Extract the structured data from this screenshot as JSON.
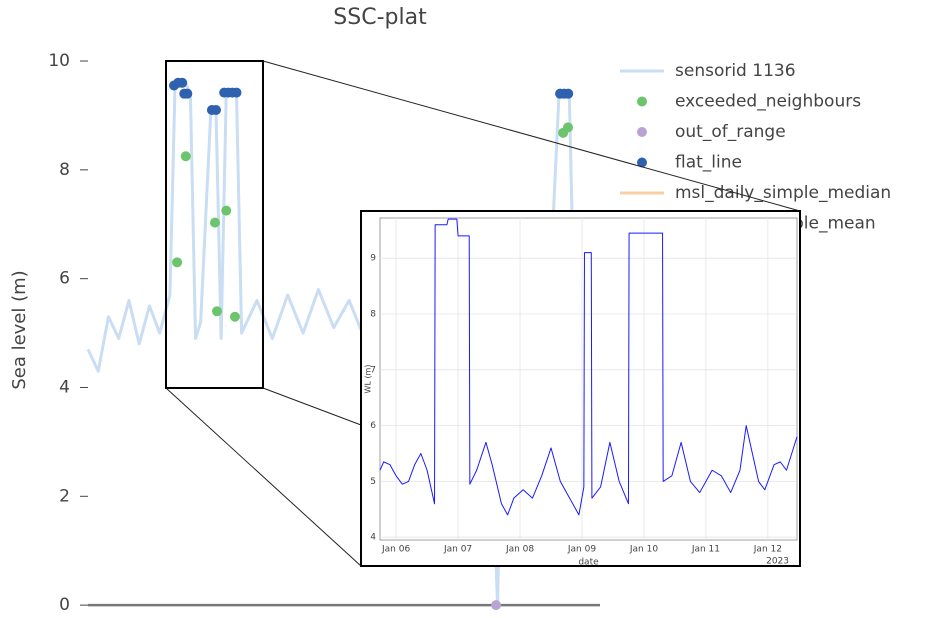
{
  "chart_data": [
    {
      "type": "line",
      "title": "SSC-plat",
      "y_label": "Sea level (m)",
      "xlim": [
        0,
        100
      ],
      "ylim": [
        -0.2,
        10.3
      ],
      "yticks": [
        0,
        2,
        4,
        6,
        8,
        10
      ],
      "legend": "right",
      "series": [
        {
          "name": "sensorid 1136",
          "color": "#c9ddf3",
          "mode": "line",
          "x": [
            0,
            2,
            4,
            6,
            8,
            10,
            12,
            14,
            16,
            17,
            19,
            20,
            21,
            22,
            24,
            25,
            26,
            27,
            29,
            30,
            33,
            36,
            39,
            42,
            45,
            48,
            51,
            54,
            57,
            60,
            63,
            66,
            69,
            72,
            75,
            78,
            80,
            81,
            84,
            87,
            90,
            92,
            94,
            95,
            98,
            100
          ],
          "values": [
            4.7,
            4.3,
            5.3,
            4.9,
            5.6,
            4.8,
            5.5,
            5.0,
            5.7,
            9.55,
            9.6,
            9.4,
            4.9,
            5.2,
            9.1,
            9.1,
            4.9,
            9.42,
            9.42,
            5.0,
            5.6,
            4.9,
            5.7,
            5.0,
            5.8,
            5.1,
            5.6,
            4.9,
            5.5,
            5.2,
            5.7,
            4.9,
            5.4,
            5.1,
            5.6,
            5.0,
            0,
            5.3,
            5.7,
            5.0,
            5.4,
            9.4,
            9.4,
            5.2,
            5.5,
            5.0
          ]
        },
        {
          "name": "exceeded_neighbours",
          "color": "#6cc46c",
          "mode": "markers",
          "x": [
            17.4,
            19.1,
            24.8,
            27,
            25.2,
            28.7,
            92.8,
            93.75
          ],
          "values": [
            6.3,
            8.25,
            7.03,
            7.25,
            5.4,
            5.3,
            8.68,
            8.78
          ]
        },
        {
          "name": "out_of_range",
          "color": "#b9a3d3",
          "mode": "markers",
          "x": [
            79.7
          ],
          "values": [
            0
          ]
        },
        {
          "name": "flat_line",
          "color": "#2f62ae",
          "mode": "markers",
          "x": [
            16.8,
            17.6,
            18.4,
            18.8,
            19.4,
            24.2,
            25,
            26.6,
            27.4,
            28.2,
            29,
            92.2,
            93,
            93.8
          ],
          "values": [
            9.55,
            9.6,
            9.6,
            9.4,
            9.4,
            9.1,
            9.1,
            9.42,
            9.42,
            9.42,
            9.42,
            9.4,
            9.4,
            9.4
          ]
        },
        {
          "name": "msl_daily_simple_median",
          "color": "#f9cfa6",
          "mode": "line",
          "x": [],
          "values": []
        },
        {
          "name": "msl_daily_simple_mean",
          "color": "#a9c4e8",
          "mode": "line",
          "x": [],
          "values": []
        }
      ]
    },
    {
      "type": "line",
      "y_label": "WL (m)",
      "x_label": "date",
      "x_offset_label": "2023",
      "xlim": [
        5.74,
        12.47
      ],
      "ylim": [
        3.95,
        9.72
      ],
      "grid": true,
      "yticks": [
        4,
        5,
        6,
        7,
        8,
        9
      ],
      "xticks": [
        {
          "value": 6,
          "label": "Jan 06"
        },
        {
          "value": 7,
          "label": "Jan 07"
        },
        {
          "value": 8,
          "label": "Jan 08"
        },
        {
          "value": 9,
          "label": "Jan 09"
        },
        {
          "value": 10,
          "label": "Jan 10"
        },
        {
          "value": 11,
          "label": "Jan 11"
        },
        {
          "value": 12,
          "label": "Jan 12"
        }
      ],
      "series": [
        {
          "color": "#1a1aff",
          "mode": "line",
          "x": [
            5.74,
            5.8,
            5.9,
            6.0,
            6.1,
            6.2,
            6.3,
            6.4,
            6.5,
            6.62,
            6.63,
            6.82,
            6.84,
            6.98,
            7.0,
            7.18,
            7.19,
            7.3,
            7.45,
            7.55,
            7.7,
            7.8,
            7.9,
            8.05,
            8.2,
            8.35,
            8.5,
            8.65,
            8.8,
            8.95,
            9.03,
            9.04,
            9.15,
            9.16,
            9.3,
            9.45,
            9.6,
            9.75,
            9.76,
            10.3,
            10.31,
            10.45,
            10.6,
            10.75,
            10.9,
            11.1,
            11.25,
            11.4,
            11.55,
            11.65,
            11.85,
            11.95,
            12.1,
            12.2,
            12.3,
            12.47
          ],
          "values": [
            5.2,
            5.35,
            5.3,
            5.1,
            4.95,
            5.0,
            5.3,
            5.5,
            5.2,
            4.6,
            9.6,
            9.6,
            9.7,
            9.7,
            9.4,
            9.4,
            4.95,
            5.2,
            5.7,
            5.3,
            4.6,
            4.4,
            4.7,
            4.85,
            4.7,
            5.1,
            5.6,
            5.0,
            4.7,
            4.4,
            4.9,
            9.1,
            9.1,
            4.7,
            4.9,
            5.7,
            5.0,
            4.6,
            9.45,
            9.45,
            5.0,
            5.1,
            5.7,
            5.0,
            4.8,
            5.2,
            5.1,
            4.8,
            5.2,
            6.0,
            5.0,
            4.85,
            5.3,
            5.35,
            5.2,
            5.8
          ]
        }
      ]
    }
  ]
}
